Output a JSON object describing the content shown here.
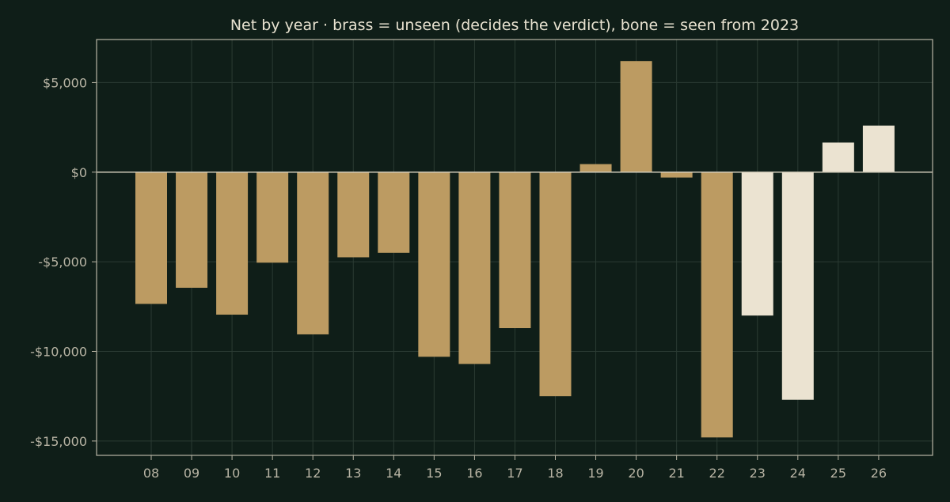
{
  "chart_data": {
    "type": "bar",
    "title": "Net by year  ·  brass = unseen (decides the verdict), bone = seen from 2023",
    "xlabel": "",
    "ylabel": "",
    "categories": [
      "08",
      "09",
      "10",
      "11",
      "12",
      "13",
      "14",
      "15",
      "16",
      "17",
      "18",
      "19",
      "20",
      "21",
      "22",
      "23",
      "24",
      "25",
      "26"
    ],
    "values": [
      -7350,
      -6450,
      -7950,
      -5050,
      -9050,
      -4750,
      -4500,
      -10300,
      -10700,
      -8700,
      -12500,
      450,
      6200,
      -300,
      -14800,
      -8000,
      -12700,
      1650,
      2600
    ],
    "seen": [
      false,
      false,
      false,
      false,
      false,
      false,
      false,
      false,
      false,
      false,
      false,
      false,
      false,
      false,
      false,
      true,
      true,
      true,
      true
    ],
    "ylim": [
      -15800,
      7400
    ],
    "yticks": [
      5000,
      0,
      -5000,
      -10000,
      -15000
    ],
    "ytick_labels": [
      "$5,000",
      "$0",
      "-$5,000",
      "-$10,000",
      "-$15,000"
    ],
    "grid": true,
    "colors": {
      "unseen": "#bc9b62",
      "seen": "#ebe3d1",
      "background": "#0f1e18",
      "grid": "#2b3b33",
      "axis": "#b8b4a4",
      "text": "#e8e2d0"
    }
  }
}
